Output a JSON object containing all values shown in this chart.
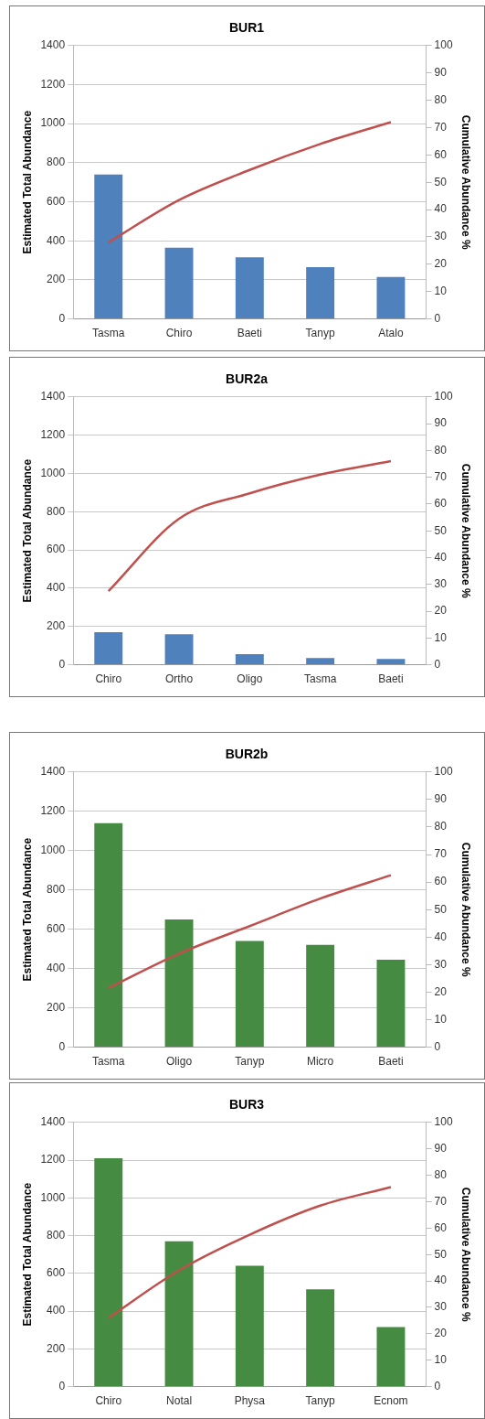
{
  "chart_data": [
    {
      "type": "bar",
      "title": "BUR1",
      "ylabel": "Estimated Total Abundance",
      "y2label": "Cumulative Abundance %",
      "categories": [
        "Tasma",
        "Chiro",
        "Baeti",
        "Tanyp",
        "Atalo"
      ],
      "series": [
        {
          "color": "#4f81bd",
          "values": [
            740,
            365,
            315,
            265,
            215
          ]
        },
        {
          "type": "line",
          "axis": "y2",
          "color": "#c0504d",
          "marker": "none",
          "values": [
            28,
            43.5,
            54.5,
            64,
            72
          ]
        }
      ],
      "ylim": [
        0,
        1400
      ],
      "yticks": [
        0,
        200,
        400,
        600,
        800,
        1000,
        1200,
        1400
      ],
      "y2lim": [
        0,
        100
      ],
      "y2ticks": [
        0,
        10,
        20,
        30,
        40,
        50,
        60,
        70,
        80,
        90,
        100
      ],
      "grid": "y"
    },
    {
      "type": "bar",
      "title": "BUR2a",
      "ylabel": "Estimated Total Abundance",
      "y2label": "Cumulative Abundance %",
      "categories": [
        "Chiro",
        "Ortho",
        "Oligo",
        "Tasma",
        "Baeti"
      ],
      "series": [
        {
          "color": "#4f81bd",
          "values": [
            170,
            160,
            55,
            35,
            30
          ]
        },
        {
          "type": "line",
          "axis": "y2",
          "color": "#c0504d",
          "marker": "none",
          "values": [
            27.5,
            54.5,
            64,
            71,
            76
          ]
        }
      ],
      "ylim": [
        0,
        1400
      ],
      "yticks": [
        0,
        200,
        400,
        600,
        800,
        1000,
        1200,
        1400
      ],
      "y2lim": [
        0,
        100
      ],
      "y2ticks": [
        0,
        10,
        20,
        30,
        40,
        50,
        60,
        70,
        80,
        90,
        100
      ],
      "grid": "y"
    },
    {
      "type": "bar",
      "title": "BUR2b",
      "ylabel": "Estimated Total Abundance",
      "y2label": "Cumulative Abundance %",
      "categories": [
        "Tasma",
        "Oligo",
        "Tanyp",
        "Micro",
        "Baeti"
      ],
      "series": [
        {
          "color": "#458c42",
          "values": [
            1140,
            650,
            540,
            520,
            445
          ]
        },
        {
          "type": "line",
          "axis": "y2",
          "color": "#c0504d",
          "marker": "none",
          "values": [
            21.5,
            34,
            44,
            54,
            62.5
          ]
        }
      ],
      "ylim": [
        0,
        1400
      ],
      "yticks": [
        0,
        200,
        400,
        600,
        800,
        1000,
        1200,
        1400
      ],
      "y2lim": [
        0,
        100
      ],
      "y2ticks": [
        0,
        10,
        20,
        30,
        40,
        50,
        60,
        70,
        80,
        90,
        100
      ],
      "grid": "y"
    },
    {
      "type": "bar",
      "title": "BUR3",
      "ylabel": "Estimated Total Abundance",
      "y2label": "Cumulative Abundance %",
      "categories": [
        "Chiro",
        "Notal",
        "Physa",
        "Tanyp",
        "Ecnom"
      ],
      "series": [
        {
          "color": "#458c42",
          "values": [
            1210,
            770,
            640,
            515,
            315
          ]
        },
        {
          "type": "line",
          "axis": "y2",
          "color": "#c0504d",
          "marker": "none",
          "values": [
            26,
            44,
            57.5,
            68.5,
            75.5
          ]
        }
      ],
      "ylim": [
        0,
        1400
      ],
      "yticks": [
        0,
        200,
        400,
        600,
        800,
        1000,
        1200,
        1400
      ],
      "y2lim": [
        0,
        100
      ],
      "y2ticks": [
        0,
        10,
        20,
        30,
        40,
        50,
        60,
        70,
        80,
        90,
        100
      ],
      "grid": "y"
    }
  ]
}
